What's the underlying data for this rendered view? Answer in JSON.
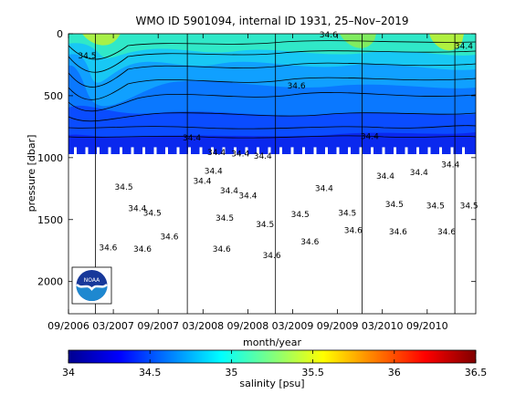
{
  "chart_data": {
    "type": "heatmap",
    "title": "WMO ID 5901094, internal ID 1931, 25–Nov–2019",
    "xlabel": "month/year",
    "ylabel": "pressure [dbar]",
    "x_tick_labels": [
      "09/2006",
      "03/2007",
      "09/2007",
      "03/2008",
      "09/2008",
      "03/2009",
      "09/2009",
      "03/2010",
      "09/2010"
    ],
    "x_ticks_months": [
      0,
      6,
      12,
      18,
      24,
      30,
      36,
      42,
      48
    ],
    "x_range_months": [
      0,
      54.5
    ],
    "y_tick_labels": [
      "0",
      "500",
      "1000",
      "1500",
      "2000"
    ],
    "y_ticks": [
      0,
      500,
      1000,
      1500,
      2000
    ],
    "ylim": [
      0,
      2260
    ],
    "profile_lines_months": [
      3.6,
      15.9,
      27.7,
      39.3,
      51.7
    ],
    "shaded_depth_max": 975,
    "colorbar": {
      "label": "salinity [psu]",
      "min": 34,
      "max": 36.5,
      "tick_labels": [
        "34",
        "34.5",
        "35",
        "35.5",
        "36",
        "36.5"
      ],
      "ticks": [
        34,
        34.5,
        35,
        35.5,
        36,
        36.5
      ],
      "colormap": "jet"
    },
    "contour_labels": [
      {
        "text": "34.4",
        "x": 17.9,
        "y": 1210
      },
      {
        "text": "34.4",
        "x": 19.4,
        "y": 1130
      },
      {
        "text": "34.4",
        "x": 21.5,
        "y": 1290
      },
      {
        "text": "34.4",
        "x": 24.0,
        "y": 1330
      },
      {
        "text": "34.4",
        "x": 34.2,
        "y": 1270
      },
      {
        "text": "34.4",
        "x": 42.4,
        "y": 1170
      },
      {
        "text": "34.4",
        "x": 46.9,
        "y": 1140
      },
      {
        "text": "34.4",
        "x": 51.1,
        "y": 1080
      },
      {
        "text": "34.4",
        "x": 16.5,
        "y": 860
      },
      {
        "text": "34.4",
        "x": 19.8,
        "y": 980
      },
      {
        "text": "34.4",
        "x": 23.0,
        "y": 990
      },
      {
        "text": "34.4",
        "x": 26.0,
        "y": 1010
      },
      {
        "text": "34.4",
        "x": 40.3,
        "y": 850
      },
      {
        "text": "34.5",
        "x": 7.4,
        "y": 1260
      },
      {
        "text": "34.5",
        "x": 11.2,
        "y": 1470
      },
      {
        "text": "34.5",
        "x": 20.9,
        "y": 1510
      },
      {
        "text": "34.5",
        "x": 26.3,
        "y": 1560
      },
      {
        "text": "34.5",
        "x": 31.0,
        "y": 1480
      },
      {
        "text": "34.5",
        "x": 37.3,
        "y": 1470
      },
      {
        "text": "34.5",
        "x": 43.6,
        "y": 1400
      },
      {
        "text": "34.5",
        "x": 49.1,
        "y": 1410
      },
      {
        "text": "34.5",
        "x": 53.6,
        "y": 1410
      },
      {
        "text": "34.4",
        "x": 9.2,
        "y": 1430
      },
      {
        "text": "34.6",
        "x": 5.3,
        "y": 1750
      },
      {
        "text": "34.6",
        "x": 9.9,
        "y": 1760
      },
      {
        "text": "34.6",
        "x": 13.5,
        "y": 1660
      },
      {
        "text": "34.6",
        "x": 20.5,
        "y": 1760
      },
      {
        "text": "34.6",
        "x": 27.2,
        "y": 1810
      },
      {
        "text": "34.6",
        "x": 32.3,
        "y": 1700
      },
      {
        "text": "34.6",
        "x": 38.1,
        "y": 1610
      },
      {
        "text": "34.6",
        "x": 44.1,
        "y": 1620
      },
      {
        "text": "34.6",
        "x": 50.6,
        "y": 1620
      },
      {
        "text": "34.6",
        "x": 30.5,
        "y": 440
      },
      {
        "text": "34.5",
        "x": 2.5,
        "y": 200
      },
      {
        "text": "34.6",
        "x": 34.8,
        "y": 30
      },
      {
        "text": "34.4",
        "x": 52.9,
        "y": 120
      }
    ]
  },
  "logo": {
    "text": "NOAA",
    "colors": {
      "top": "#17389a",
      "bottom": "#1e88d0",
      "wave": "#ffffff"
    }
  }
}
